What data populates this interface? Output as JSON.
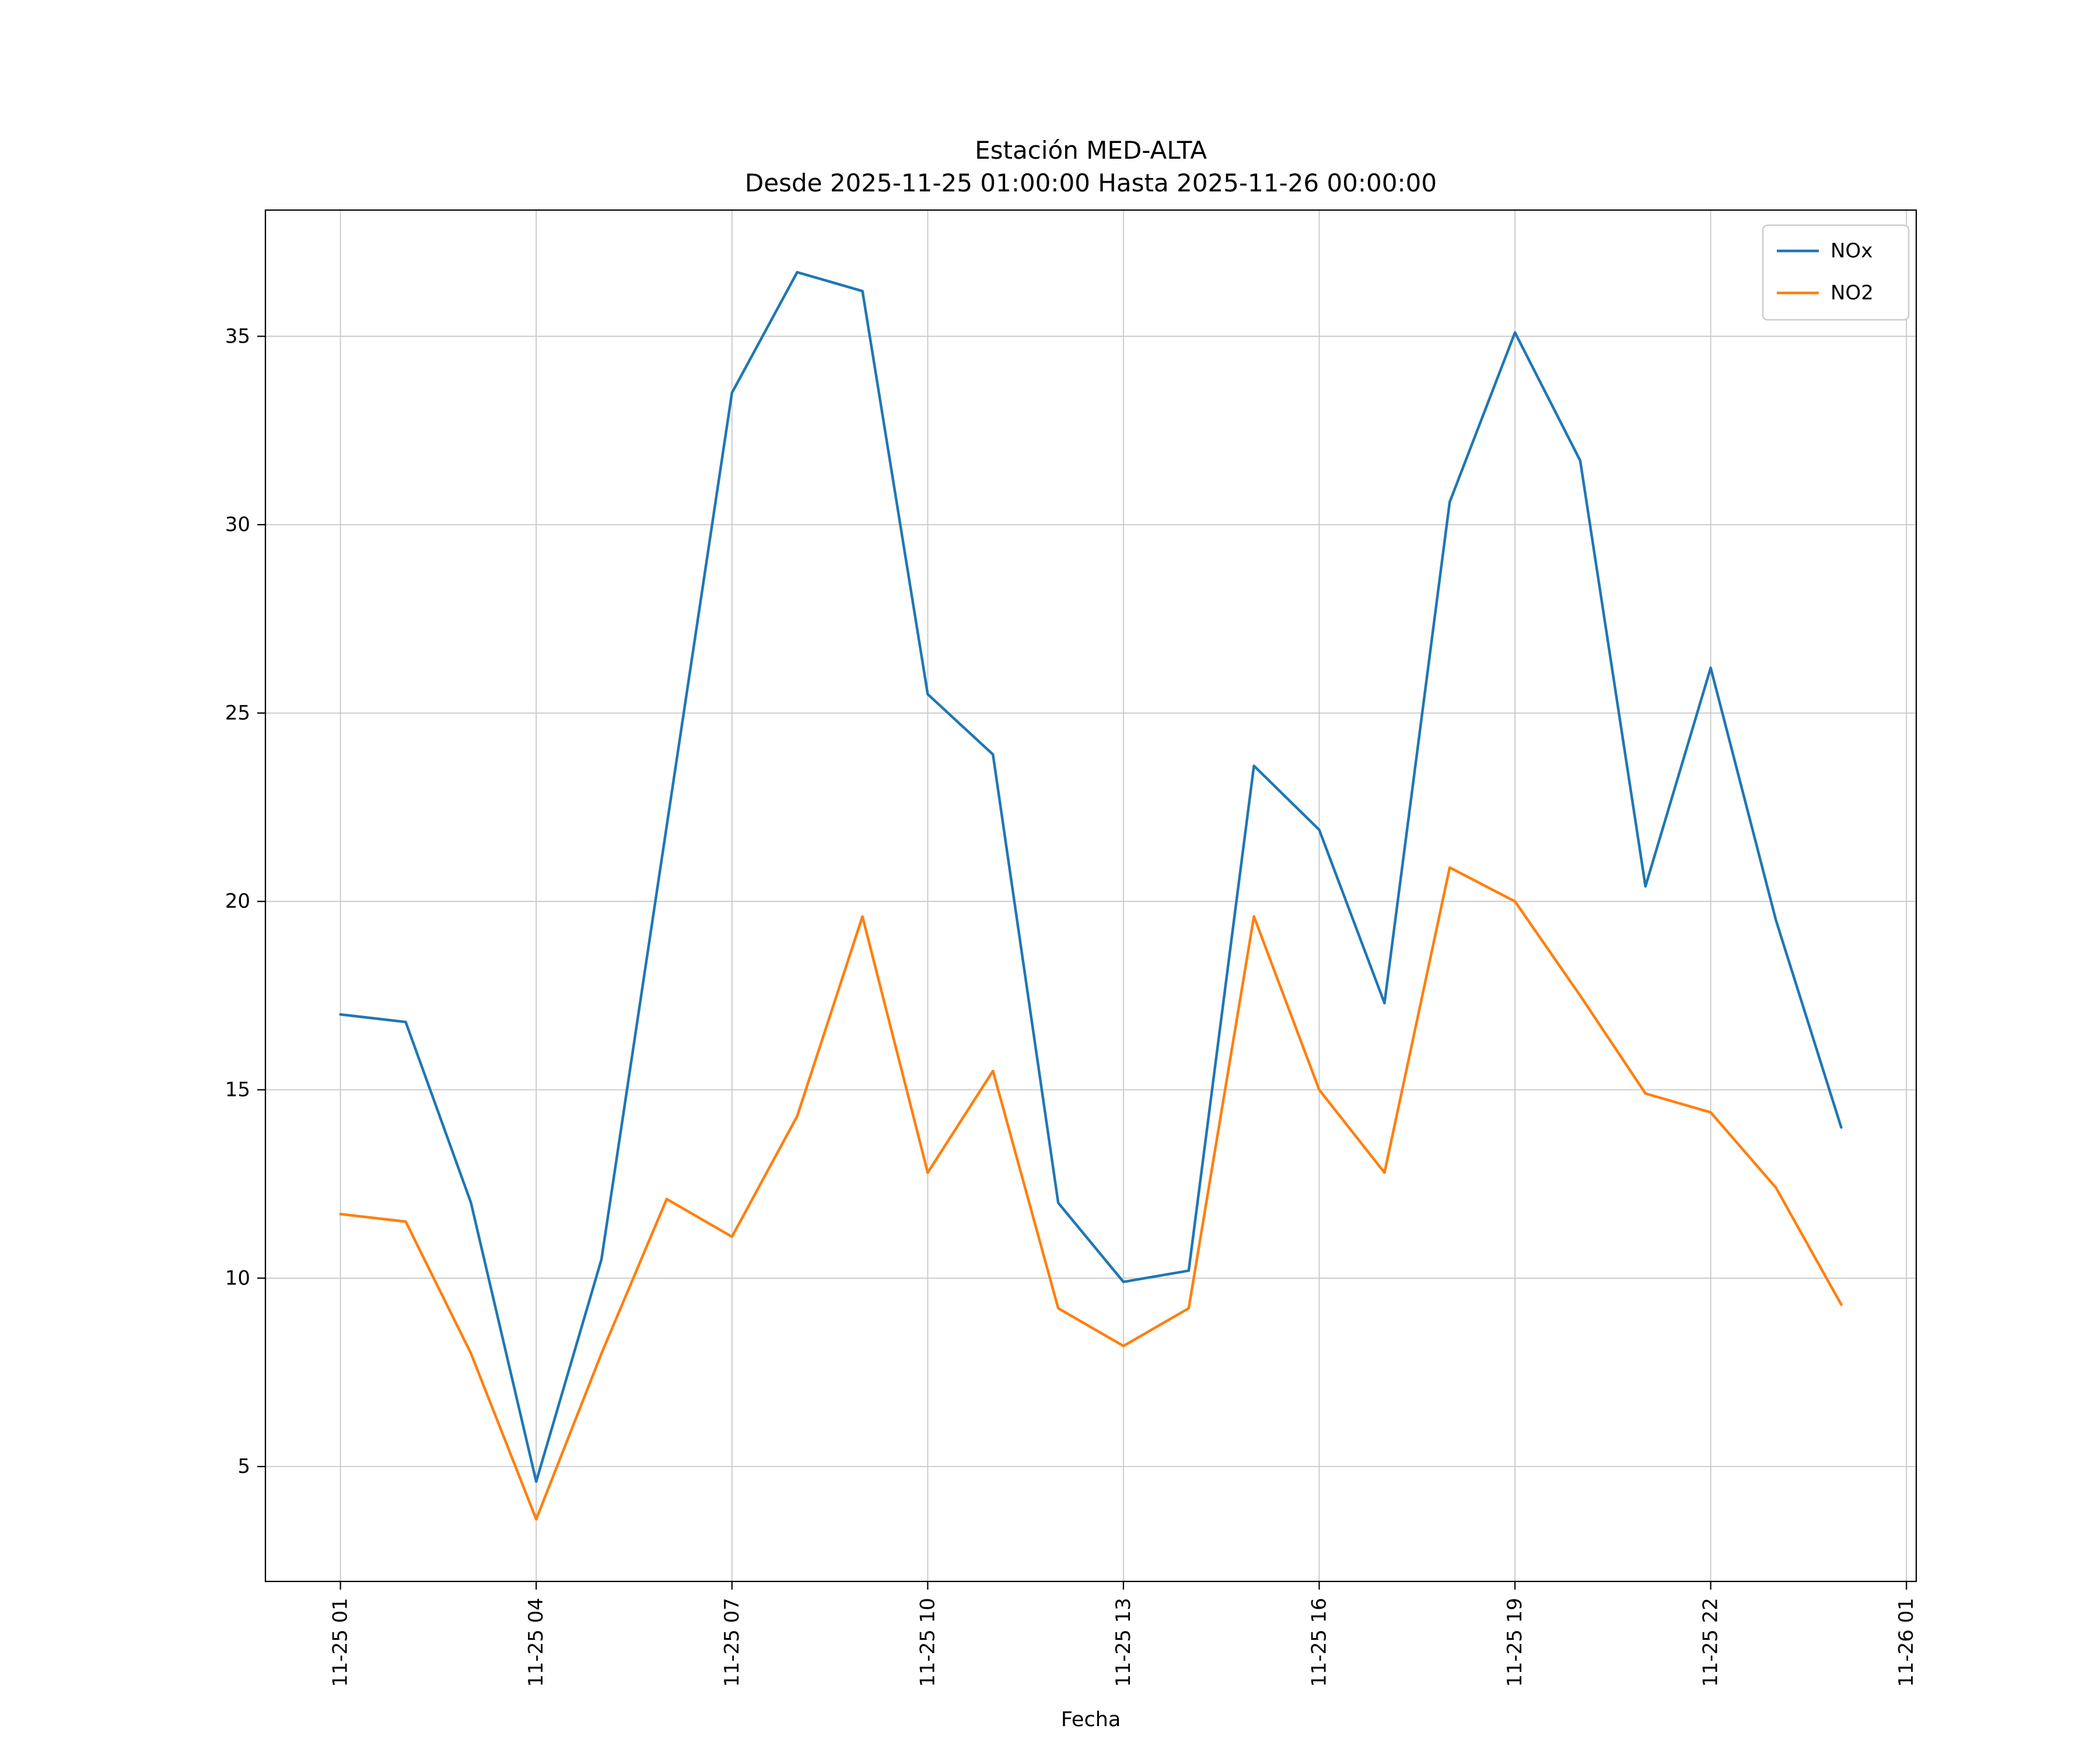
{
  "chart_data": {
    "type": "line",
    "title": "Estación MED-ALTA",
    "subtitle": "Desde 2025-11-25 01:00:00 Hasta 2025-11-26 00:00:00",
    "xlabel": "Fecha",
    "ylabel": "",
    "grid": true,
    "legend_position": "upper right",
    "x_hours": [
      1,
      2,
      3,
      4,
      5,
      6,
      7,
      8,
      9,
      10,
      11,
      12,
      13,
      14,
      15,
      16,
      17,
      18,
      19,
      20,
      21,
      22,
      23,
      24
    ],
    "xtick_hours": [
      1,
      4,
      7,
      10,
      13,
      16,
      19,
      22,
      25
    ],
    "xtick_labels": [
      "11-25 01",
      "11-25 04",
      "11-25 07",
      "11-25 10",
      "11-25 13",
      "11-25 16",
      "11-25 19",
      "11-25 22",
      "11-26 01"
    ],
    "yticks": [
      5,
      10,
      15,
      20,
      25,
      30,
      35
    ],
    "xlim": [
      -0.15,
      25.15
    ],
    "ylim": [
      1.95,
      38.35
    ],
    "series": [
      {
        "name": "NOx",
        "color": "#1f77b4",
        "values": [
          17.0,
          16.8,
          12.0,
          4.6,
          10.5,
          22.0,
          33.5,
          36.7,
          36.2,
          25.5,
          23.9,
          12.0,
          9.9,
          10.2,
          23.6,
          21.9,
          17.3,
          30.6,
          35.1,
          31.7,
          20.4,
          26.2,
          19.5,
          14.0
        ]
      },
      {
        "name": "NO2",
        "color": "#ff7f0e",
        "values": [
          11.7,
          11.5,
          8.0,
          3.6,
          8.0,
          12.1,
          11.1,
          14.3,
          19.6,
          12.8,
          15.5,
          9.2,
          8.2,
          9.2,
          19.6,
          15.0,
          12.8,
          20.9,
          20.0,
          17.5,
          14.9,
          14.4,
          12.4,
          9.3
        ]
      }
    ]
  }
}
